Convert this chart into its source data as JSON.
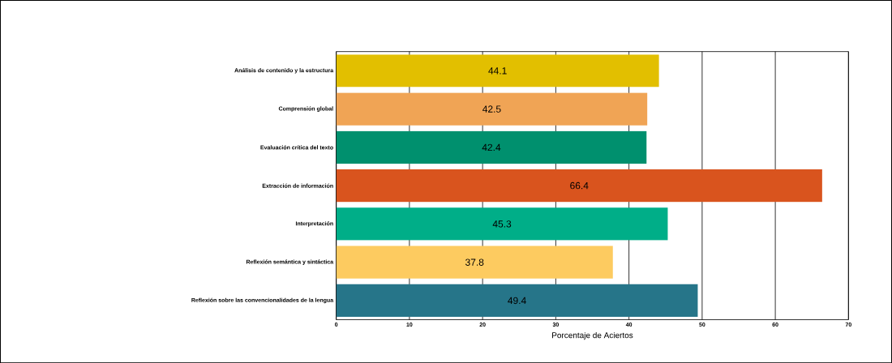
{
  "chart_data": {
    "type": "bar",
    "orientation": "horizontal",
    "xlabel": "Porcentaje de Aciertos",
    "categories": [
      "Análisis de contenido y la estructura",
      "Comprensión global",
      "Evaluación crítica del texto",
      "Extracción de información",
      "Interpretación",
      "Reflexión semántica y sintáctica",
      "Reflexión sobre las convencionalidades de la lengua"
    ],
    "values": [
      44.1,
      42.5,
      42.4,
      66.4,
      45.3,
      37.8,
      49.4
    ],
    "colors": [
      "#e2bf00",
      "#f0a455",
      "#00906e",
      "#d9541e",
      "#00ae88",
      "#fdcb60",
      "#267589"
    ],
    "xlim": [
      0,
      70
    ],
    "xticks": [
      0,
      10,
      20,
      30,
      40,
      50,
      60,
      70
    ],
    "grid": "x",
    "data_labels": true
  }
}
